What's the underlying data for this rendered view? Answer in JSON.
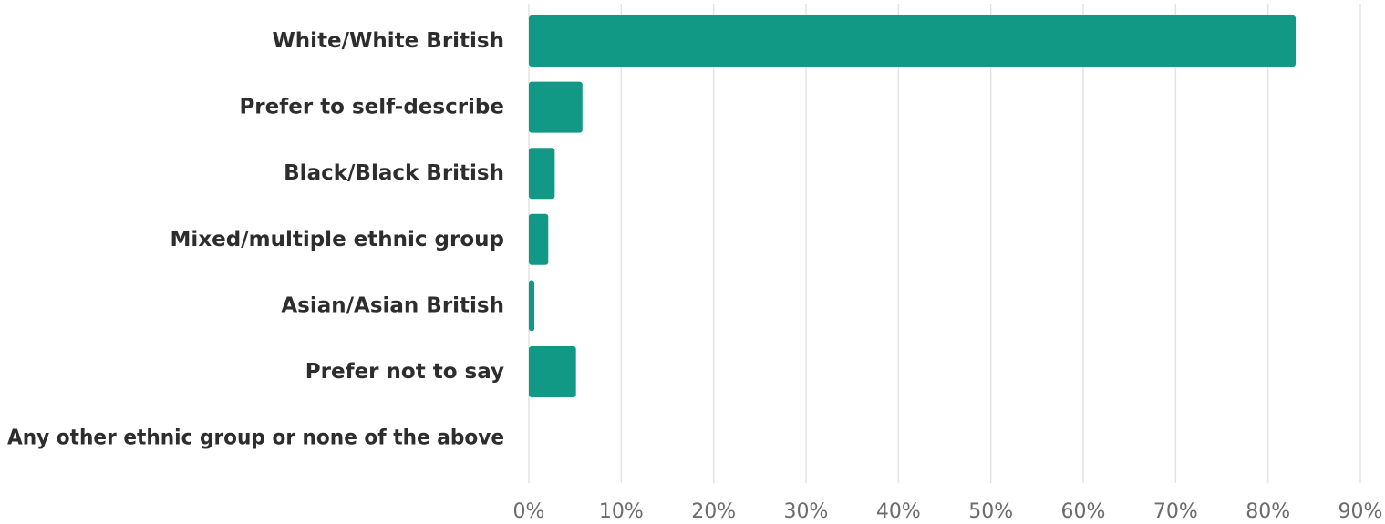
{
  "chart_data": {
    "type": "bar",
    "orientation": "horizontal",
    "title": "",
    "xlabel": "",
    "ylabel": "",
    "categories": [
      "White/White British",
      "Prefer to self-describe",
      "Black/Black British",
      "Mixed/multiple ethnic group",
      "Asian/Asian British",
      "Prefer not to say",
      "Any other ethnic group or none of the above"
    ],
    "values": [
      83,
      5.8,
      2.8,
      2.1,
      0.6,
      5.1,
      0
    ],
    "xlim": [
      0,
      90
    ],
    "ticks": [
      0,
      10,
      20,
      30,
      40,
      50,
      60,
      70,
      80,
      90
    ],
    "tick_labels": [
      "0%",
      "10%",
      "20%",
      "30%",
      "40%",
      "50%",
      "60%",
      "70%",
      "80%",
      "90%"
    ],
    "bar_color": "#129985",
    "grid": true,
    "legend": "none"
  }
}
